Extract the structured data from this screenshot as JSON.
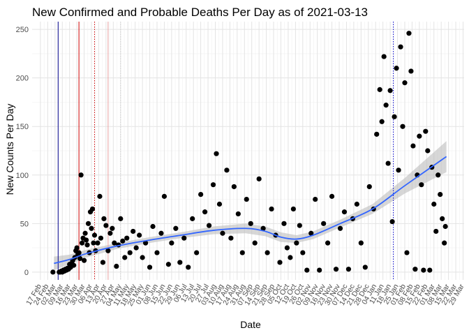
{
  "chart_data": {
    "type": "scatter",
    "title": "New Confirmed and Probable Deaths Per Day as of 2021-03-13",
    "xlabel": "Date",
    "ylabel": "New Counts Per Day",
    "ylim": [
      -8,
      258
    ],
    "yticks": [
      0,
      50,
      100,
      150,
      200,
      250
    ],
    "xlim": [
      "2020-02-09",
      "2021-03-30"
    ],
    "xticks": [
      "2020-02-17",
      "2020-02-24",
      "2020-03-02",
      "2020-03-09",
      "2020-03-16",
      "2020-03-23",
      "2020-03-30",
      "2020-04-06",
      "2020-04-13",
      "2020-04-20",
      "2020-04-27",
      "2020-05-04",
      "2020-05-11",
      "2020-05-18",
      "2020-05-25",
      "2020-06-01",
      "2020-06-08",
      "2020-06-15",
      "2020-06-22",
      "2020-06-29",
      "2020-07-06",
      "2020-07-13",
      "2020-07-20",
      "2020-07-27",
      "2020-08-03",
      "2020-08-10",
      "2020-08-17",
      "2020-08-24",
      "2020-08-31",
      "2020-09-07",
      "2020-09-14",
      "2020-09-21",
      "2020-09-28",
      "2020-10-05",
      "2020-10-12",
      "2020-10-19",
      "2020-10-26",
      "2020-11-02",
      "2020-11-09",
      "2020-11-16",
      "2020-11-23",
      "2020-11-30",
      "2020-12-07",
      "2020-12-14",
      "2020-12-21",
      "2020-12-28",
      "2021-01-04",
      "2021-01-11",
      "2021-01-18",
      "2021-01-25",
      "2021-02-01",
      "2021-02-08",
      "2021-02-15",
      "2021-02-22",
      "2021-03-01",
      "2021-03-08",
      "2021-03-15",
      "2021-03-22",
      "2021-03-29"
    ],
    "xtick_labels": [
      "17 Feb",
      "24 Feb",
      "02 Mar",
      "09 Mar",
      "16 Mar",
      "23 Mar",
      "30 Mar",
      "06 Apr",
      "13 Apr",
      "20 Apr",
      "27 Apr",
      "04 May",
      "11 May",
      "18 May",
      "25 May",
      "01 Jun",
      "08 Jun",
      "15 Jun",
      "22 Jun",
      "29 Jun",
      "06 Jul",
      "13 Jul",
      "20 Jul",
      "27 Jul",
      "03 Aug",
      "10 Aug",
      "17 Aug",
      "24 Aug",
      "31 Aug",
      "07 Sep",
      "14 Sep",
      "21 Sep",
      "28 Sep",
      "05 Oct",
      "12 Oct",
      "19 Oct",
      "26 Oct",
      "02 Nov",
      "09 Nov",
      "16 Nov",
      "23 Nov",
      "30 Nov",
      "07 Dec",
      "14 Dec",
      "21 Dec",
      "28 Dec",
      "04 Jan",
      "11 Jan",
      "18 Jan",
      "25 Jan",
      "01 Feb",
      "08 Feb",
      "15 Feb",
      "22 Feb",
      "01 Mar",
      "08 Mar",
      "15 Mar",
      "22 Mar",
      "29 Mar"
    ],
    "grid": true,
    "legend": "none",
    "vlines": [
      {
        "x": "2020-03-05",
        "color": "#00008b",
        "style": "solid"
      },
      {
        "x": "2020-03-25",
        "color": "#cc0000",
        "style": "solid"
      },
      {
        "x": "2020-04-09",
        "color": "#cc0000",
        "style": "dotted"
      },
      {
        "x": "2020-04-22",
        "color": "#e8a0a0",
        "style": "solid"
      },
      {
        "x": "2020-05-04",
        "color": "#cfcfcf",
        "style": "dotted"
      },
      {
        "x": "2021-01-21",
        "color": "#0000cd",
        "style": "dotted"
      }
    ],
    "points_color": "#000000",
    "trend_color": "#3366ff",
    "band_color": "#bdbdbd",
    "trend": [
      {
        "x": "2020-03-01",
        "y": 9
      },
      {
        "x": "2020-03-16",
        "y": 13
      },
      {
        "x": "2020-04-01",
        "y": 19
      },
      {
        "x": "2020-05-01",
        "y": 27
      },
      {
        "x": "2020-06-01",
        "y": 33
      },
      {
        "x": "2020-07-01",
        "y": 38
      },
      {
        "x": "2020-08-01",
        "y": 43
      },
      {
        "x": "2020-09-01",
        "y": 45
      },
      {
        "x": "2020-09-20",
        "y": 42
      },
      {
        "x": "2020-10-05",
        "y": 36
      },
      {
        "x": "2020-10-20",
        "y": 34
      },
      {
        "x": "2020-11-05",
        "y": 38
      },
      {
        "x": "2020-12-01",
        "y": 50
      },
      {
        "x": "2021-01-01",
        "y": 65
      },
      {
        "x": "2021-02-01",
        "y": 89
      },
      {
        "x": "2021-03-13",
        "y": 119
      }
    ],
    "band_halfwidth": [
      7,
      5,
      4,
      3,
      3,
      3,
      4,
      5,
      5,
      5,
      4,
      4,
      4,
      5,
      8,
      16
    ],
    "points": [
      {
        "x": "2020-02-29",
        "y": 0
      },
      {
        "x": "2020-03-06",
        "y": 0
      },
      {
        "x": "2020-03-07",
        "y": 0
      },
      {
        "x": "2020-03-08",
        "y": 1
      },
      {
        "x": "2020-03-09",
        "y": 0
      },
      {
        "x": "2020-03-10",
        "y": 2
      },
      {
        "x": "2020-03-11",
        "y": 1
      },
      {
        "x": "2020-03-12",
        "y": 3
      },
      {
        "x": "2020-03-13",
        "y": 2
      },
      {
        "x": "2020-03-14",
        "y": 4
      },
      {
        "x": "2020-03-15",
        "y": 3
      },
      {
        "x": "2020-03-16",
        "y": 8
      },
      {
        "x": "2020-03-17",
        "y": 5
      },
      {
        "x": "2020-03-18",
        "y": 9
      },
      {
        "x": "2020-03-19",
        "y": 12
      },
      {
        "x": "2020-03-20",
        "y": 7
      },
      {
        "x": "2020-03-21",
        "y": 15
      },
      {
        "x": "2020-03-22",
        "y": 22
      },
      {
        "x": "2020-03-23",
        "y": 25
      },
      {
        "x": "2020-03-24",
        "y": 18
      },
      {
        "x": "2020-03-25",
        "y": 20
      },
      {
        "x": "2020-03-26",
        "y": 14
      },
      {
        "x": "2020-03-27",
        "y": 100
      },
      {
        "x": "2020-03-28",
        "y": 30
      },
      {
        "x": "2020-03-29",
        "y": 35
      },
      {
        "x": "2020-03-30",
        "y": 12
      },
      {
        "x": "2020-03-31",
        "y": 40
      },
      {
        "x": "2020-04-01",
        "y": 33
      },
      {
        "x": "2020-04-02",
        "y": 28
      },
      {
        "x": "2020-04-03",
        "y": 50
      },
      {
        "x": "2020-04-04",
        "y": 20
      },
      {
        "x": "2020-04-05",
        "y": 62
      },
      {
        "x": "2020-04-06",
        "y": 45
      },
      {
        "x": "2020-04-07",
        "y": 65
      },
      {
        "x": "2020-04-08",
        "y": 30
      },
      {
        "x": "2020-04-09",
        "y": 38
      },
      {
        "x": "2020-04-10",
        "y": 22
      },
      {
        "x": "2020-04-12",
        "y": 30
      },
      {
        "x": "2020-04-14",
        "y": 78
      },
      {
        "x": "2020-04-15",
        "y": 35
      },
      {
        "x": "2020-04-17",
        "y": 10
      },
      {
        "x": "2020-04-18",
        "y": 55
      },
      {
        "x": "2020-04-20",
        "y": 48
      },
      {
        "x": "2020-04-22",
        "y": 22
      },
      {
        "x": "2020-04-24",
        "y": 40
      },
      {
        "x": "2020-04-26",
        "y": 45
      },
      {
        "x": "2020-04-28",
        "y": 30
      },
      {
        "x": "2020-04-30",
        "y": 6
      },
      {
        "x": "2020-05-02",
        "y": 28
      },
      {
        "x": "2020-05-04",
        "y": 55
      },
      {
        "x": "2020-05-06",
        "y": 32
      },
      {
        "x": "2020-05-08",
        "y": 15
      },
      {
        "x": "2020-05-10",
        "y": 35
      },
      {
        "x": "2020-05-13",
        "y": 20
      },
      {
        "x": "2020-05-16",
        "y": 42
      },
      {
        "x": "2020-05-19",
        "y": 25
      },
      {
        "x": "2020-05-22",
        "y": 38
      },
      {
        "x": "2020-05-25",
        "y": 15
      },
      {
        "x": "2020-05-28",
        "y": 30
      },
      {
        "x": "2020-06-01",
        "y": 5
      },
      {
        "x": "2020-06-04",
        "y": 47
      },
      {
        "x": "2020-06-08",
        "y": 20
      },
      {
        "x": "2020-06-12",
        "y": 40
      },
      {
        "x": "2020-06-15",
        "y": 78
      },
      {
        "x": "2020-06-19",
        "y": 8
      },
      {
        "x": "2020-06-22",
        "y": 30
      },
      {
        "x": "2020-06-26",
        "y": 45
      },
      {
        "x": "2020-06-30",
        "y": 10
      },
      {
        "x": "2020-07-04",
        "y": 35
      },
      {
        "x": "2020-07-08",
        "y": 5
      },
      {
        "x": "2020-07-12",
        "y": 55
      },
      {
        "x": "2020-07-16",
        "y": 20
      },
      {
        "x": "2020-07-20",
        "y": 80
      },
      {
        "x": "2020-07-24",
        "y": 62
      },
      {
        "x": "2020-07-28",
        "y": 48
      },
      {
        "x": "2020-08-01",
        "y": 90
      },
      {
        "x": "2020-08-04",
        "y": 122
      },
      {
        "x": "2020-08-07",
        "y": 70
      },
      {
        "x": "2020-08-10",
        "y": 40
      },
      {
        "x": "2020-08-14",
        "y": 105
      },
      {
        "x": "2020-08-18",
        "y": 35
      },
      {
        "x": "2020-08-21",
        "y": 88
      },
      {
        "x": "2020-08-25",
        "y": 60
      },
      {
        "x": "2020-08-29",
        "y": 20
      },
      {
        "x": "2020-09-02",
        "y": 75
      },
      {
        "x": "2020-09-06",
        "y": 50
      },
      {
        "x": "2020-09-10",
        "y": 30
      },
      {
        "x": "2020-09-14",
        "y": 96
      },
      {
        "x": "2020-09-18",
        "y": 45
      },
      {
        "x": "2020-09-22",
        "y": 20
      },
      {
        "x": "2020-09-26",
        "y": 65
      },
      {
        "x": "2020-09-30",
        "y": 38
      },
      {
        "x": "2020-10-04",
        "y": 10
      },
      {
        "x": "2020-10-08",
        "y": 50
      },
      {
        "x": "2020-10-11",
        "y": 25
      },
      {
        "x": "2020-10-14",
        "y": 15
      },
      {
        "x": "2020-10-17",
        "y": 65
      },
      {
        "x": "2020-10-20",
        "y": 30
      },
      {
        "x": "2020-10-23",
        "y": 48
      },
      {
        "x": "2020-10-26",
        "y": 20
      },
      {
        "x": "2020-10-30",
        "y": 2
      },
      {
        "x": "2020-11-03",
        "y": 40
      },
      {
        "x": "2020-11-07",
        "y": 75
      },
      {
        "x": "2020-11-11",
        "y": 2
      },
      {
        "x": "2020-11-15",
        "y": 50
      },
      {
        "x": "2020-11-19",
        "y": 30
      },
      {
        "x": "2020-11-23",
        "y": 78
      },
      {
        "x": "2020-11-27",
        "y": 3
      },
      {
        "x": "2020-12-01",
        "y": 45
      },
      {
        "x": "2020-12-05",
        "y": 62
      },
      {
        "x": "2020-12-09",
        "y": 3
      },
      {
        "x": "2020-12-13",
        "y": 55
      },
      {
        "x": "2020-12-17",
        "y": 70
      },
      {
        "x": "2020-12-21",
        "y": 30
      },
      {
        "x": "2020-12-25",
        "y": 5
      },
      {
        "x": "2020-12-29",
        "y": 88
      },
      {
        "x": "2021-01-02",
        "y": 65
      },
      {
        "x": "2021-01-05",
        "y": 142
      },
      {
        "x": "2021-01-08",
        "y": 188
      },
      {
        "x": "2021-01-10",
        "y": 155
      },
      {
        "x": "2021-01-12",
        "y": 222
      },
      {
        "x": "2021-01-14",
        "y": 172
      },
      {
        "x": "2021-01-16",
        "y": 112
      },
      {
        "x": "2021-01-18",
        "y": 187
      },
      {
        "x": "2021-01-20",
        "y": 52
      },
      {
        "x": "2021-01-22",
        "y": 160
      },
      {
        "x": "2021-01-24",
        "y": 210
      },
      {
        "x": "2021-01-26",
        "y": 105
      },
      {
        "x": "2021-01-28",
        "y": 232
      },
      {
        "x": "2021-01-30",
        "y": 150
      },
      {
        "x": "2021-02-01",
        "y": 195
      },
      {
        "x": "2021-02-03",
        "y": 20
      },
      {
        "x": "2021-02-05",
        "y": 246
      },
      {
        "x": "2021-02-07",
        "y": 207
      },
      {
        "x": "2021-02-09",
        "y": 130
      },
      {
        "x": "2021-02-11",
        "y": 3
      },
      {
        "x": "2021-02-13",
        "y": 100
      },
      {
        "x": "2021-02-15",
        "y": 140
      },
      {
        "x": "2021-02-17",
        "y": 90
      },
      {
        "x": "2021-02-19",
        "y": 2
      },
      {
        "x": "2021-02-21",
        "y": 145
      },
      {
        "x": "2021-02-23",
        "y": 125
      },
      {
        "x": "2021-02-25",
        "y": 2
      },
      {
        "x": "2021-02-27",
        "y": 108
      },
      {
        "x": "2021-03-01",
        "y": 70
      },
      {
        "x": "2021-03-03",
        "y": 42
      },
      {
        "x": "2021-03-05",
        "y": 100
      },
      {
        "x": "2021-03-07",
        "y": 80
      },
      {
        "x": "2021-03-09",
        "y": 55
      },
      {
        "x": "2021-03-11",
        "y": 30
      },
      {
        "x": "2021-03-12",
        "y": 47
      }
    ]
  }
}
